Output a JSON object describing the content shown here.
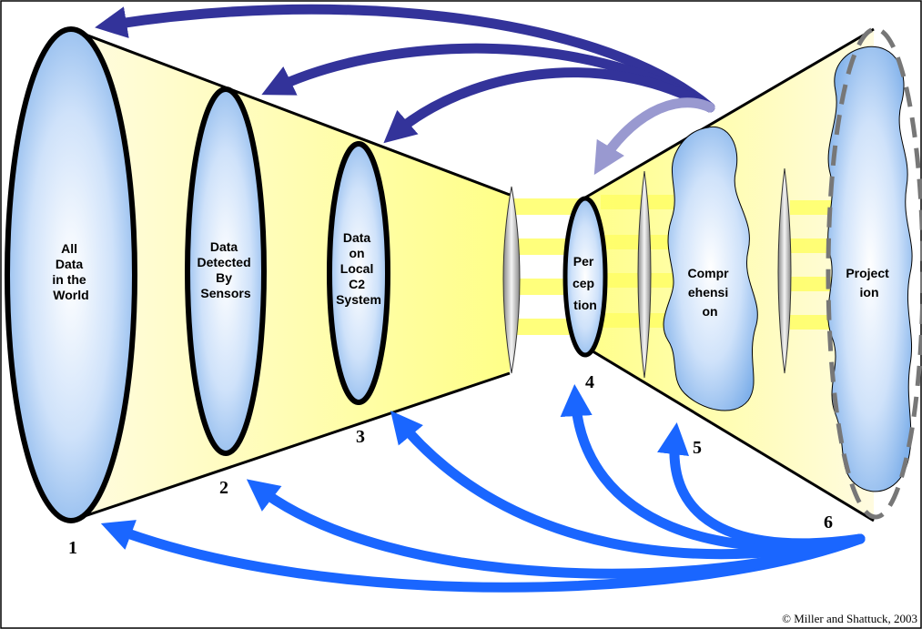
{
  "diagram": {
    "stages": [
      {
        "id": "1",
        "lines": [
          "All",
          "Data",
          "in the",
          "World"
        ]
      },
      {
        "id": "2",
        "lines": [
          "Data",
          "Detected",
          "By",
          "Sensors"
        ]
      },
      {
        "id": "3",
        "lines": [
          "Data",
          "on",
          "Local",
          "C2",
          "System"
        ]
      },
      {
        "id": "4",
        "lines": [
          "Per",
          "cep",
          "tion"
        ]
      },
      {
        "id": "5",
        "lines": [
          "Compr",
          "ehensi",
          "on"
        ]
      },
      {
        "id": "6",
        "lines": [
          "Project",
          "ion"
        ]
      }
    ],
    "copyright": "© Miller and Shattuck, 2003",
    "colors": {
      "top_arrow": "#33339a",
      "top_arrow_light": "#9999d0",
      "bottom_arrow": "#1a66ff",
      "funnel": "#ffff99",
      "ellipse": "#8fbdf0"
    }
  }
}
